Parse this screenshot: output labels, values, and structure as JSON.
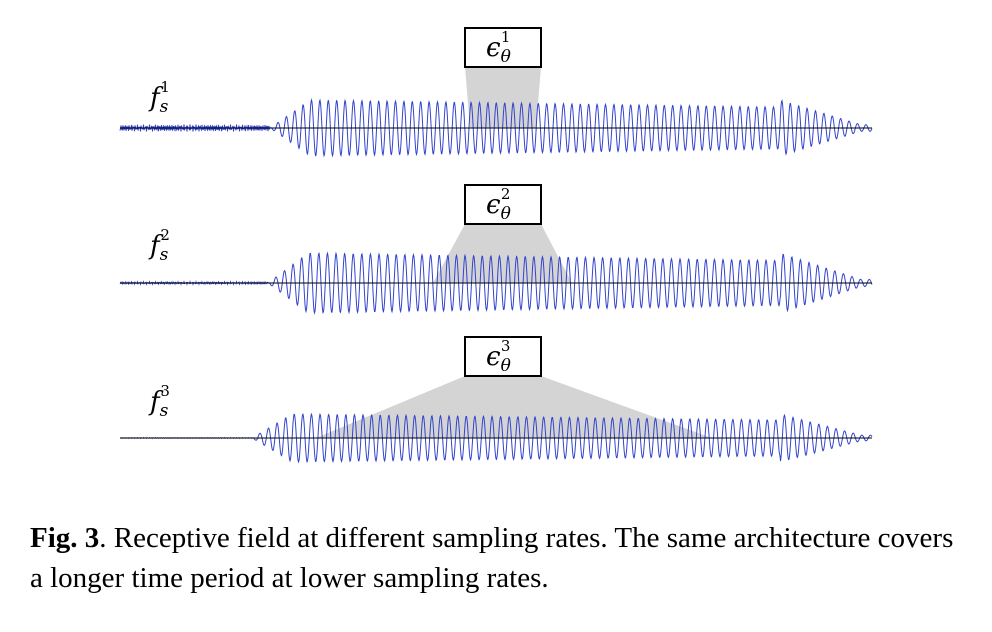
{
  "figure": {
    "rows": [
      {
        "rate_label": "f",
        "rate_sub": "s",
        "rate_sup": "1",
        "field_label": "ϵ",
        "field_sub": "θ",
        "field_sup": "1"
      },
      {
        "rate_label": "f",
        "rate_sub": "s",
        "rate_sup": "2",
        "field_label": "ϵ",
        "field_sub": "θ",
        "field_sup": "2"
      },
      {
        "rate_label": "f",
        "rate_sub": "s",
        "rate_sup": "3",
        "field_label": "ϵ",
        "field_sub": "θ",
        "field_sup": "3"
      }
    ],
    "colors": {
      "waveform": "#3344cc",
      "axis": "#000000",
      "receptive_field": "#d4d4d4",
      "box_border": "#000000"
    }
  },
  "caption": {
    "lead": "Fig. 3",
    "text": ". Receptive field at different sampling rates. The same architecture covers a longer time period at lower sampling rates."
  }
}
